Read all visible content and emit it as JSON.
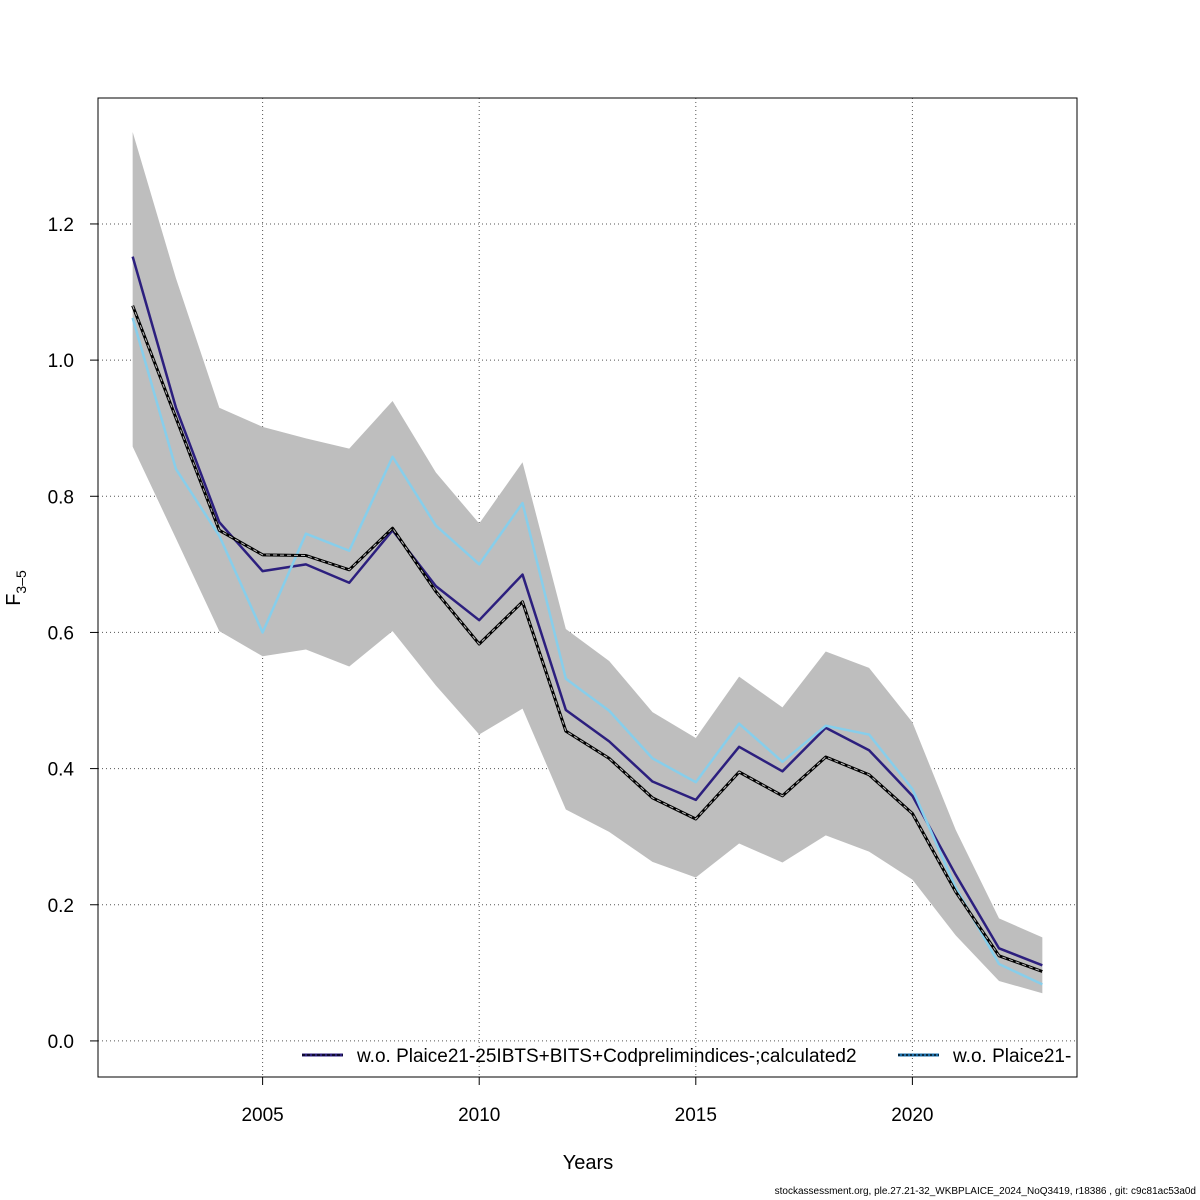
{
  "chart_data": {
    "type": "line",
    "title": "",
    "xlabel": "Years",
    "ylabel_main": "F",
    "ylabel_sub": "3–5",
    "xlim": [
      2001.2,
      2023.8
    ],
    "ylim": [
      -0.053,
      1.385
    ],
    "x_ticks": [
      2005,
      2010,
      2015,
      2020
    ],
    "y_ticks": [
      0.0,
      0.2,
      0.4,
      0.6,
      0.8,
      1.0,
      1.2
    ],
    "y_tick_labels": [
      "0.0",
      "0.2",
      "0.4",
      "0.6",
      "0.8",
      "1.0",
      "1.2"
    ],
    "grid": true,
    "x": [
      2002,
      2003,
      2004,
      2005,
      2006,
      2007,
      2008,
      2009,
      2010,
      2011,
      2012,
      2013,
      2014,
      2015,
      2016,
      2017,
      2018,
      2019,
      2020,
      2021,
      2022,
      2023
    ],
    "band": {
      "upper": [
        1.335,
        1.12,
        0.93,
        0.902,
        0.885,
        0.87,
        0.94,
        0.835,
        0.76,
        0.85,
        0.605,
        0.558,
        0.483,
        0.445,
        0.535,
        0.49,
        0.572,
        0.548,
        0.468,
        0.31,
        0.18,
        0.152
      ],
      "lower": [
        0.873,
        0.738,
        0.602,
        0.565,
        0.575,
        0.55,
        0.602,
        0.522,
        0.45,
        0.488,
        0.34,
        0.307,
        0.263,
        0.24,
        0.29,
        0.262,
        0.302,
        0.278,
        0.237,
        0.155,
        0.088,
        0.07
      ],
      "color": "#bebebe"
    },
    "series": [
      {
        "name": "w.o. Plaice21-25IBTS+BITS+Codprelimindices-;calculated2",
        "color": "#2c1f7e",
        "style": "solid",
        "values": [
          1.152,
          0.93,
          0.762,
          0.69,
          0.7,
          0.673,
          0.75,
          0.668,
          0.618,
          0.685,
          0.486,
          0.44,
          0.381,
          0.354,
          0.432,
          0.396,
          0.46,
          0.427,
          0.36,
          0.244,
          0.136,
          0.111
        ]
      },
      {
        "name": "w.o. Plaice21-",
        "color": "#87ceeb",
        "style": "solid",
        "values": [
          1.062,
          0.84,
          0.742,
          0.6,
          0.745,
          0.72,
          0.858,
          0.757,
          0.7,
          0.79,
          0.532,
          0.485,
          0.415,
          0.38,
          0.466,
          0.41,
          0.463,
          0.45,
          0.37,
          0.225,
          0.113,
          0.083
        ]
      },
      {
        "name": "",
        "color": "#000000",
        "style": "base-dashed",
        "values": [
          1.08,
          0.915,
          0.75,
          0.714,
          0.713,
          0.692,
          0.753,
          0.66,
          0.583,
          0.645,
          0.455,
          0.415,
          0.357,
          0.326,
          0.395,
          0.36,
          0.417,
          0.391,
          0.334,
          0.219,
          0.125,
          0.102
        ]
      }
    ],
    "legend": {
      "placement": "bottom",
      "entries": [
        "w.o. Plaice21-25IBTS+BITS+Codprelimindices-;calculated2",
        "w.o. Plaice21-"
      ]
    }
  },
  "footer": "stockassessment.org, ple.27.21-32_WKBPLAICE_2024_NoQ3419, r18386 , git: c9c81ac53a0d"
}
